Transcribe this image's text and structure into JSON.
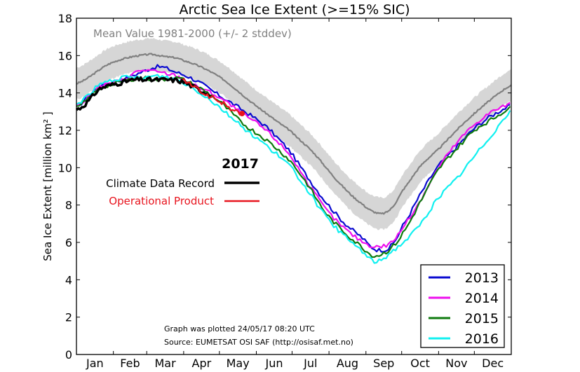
{
  "chart_data": {
    "type": "line",
    "title": "Arctic Sea Ice Extent (>=15% SIC)",
    "xlabel": "",
    "ylabel": "Sea Ice Extent [million km² ]",
    "ylim": [
      0,
      18
    ],
    "xlim_days": [
      1,
      366
    ],
    "yticks": [
      "0",
      "2",
      "4",
      "6",
      "8",
      "10",
      "12",
      "14",
      "16",
      "18"
    ],
    "month_labels": [
      "Jan",
      "Feb",
      "Mar",
      "Apr",
      "May",
      "Jun",
      "Jul",
      "Aug",
      "Sep",
      "Oct",
      "Nov",
      "Dec"
    ],
    "mean_label": "Mean Value 1981-2000 (+/- 2 stddev)",
    "annotation_lines": [
      "Graph was plotted 24/05/17 08:20 UTC",
      "Source: EUMETSAT OSI SAF (http://osisaf.met.no)"
    ],
    "legend_2017": {
      "title": "2017",
      "entries": [
        {
          "name": "Climate Data Record",
          "color": "#000000"
        },
        {
          "name": "Operational Product",
          "color": "#e8141e"
        }
      ]
    },
    "legend_position": "bottom-right",
    "mean": {
      "name": "Mean 1981-2000",
      "color": "#808080",
      "band_color": "#d6d6d6",
      "x": [
        1,
        30,
        60,
        75,
        90,
        120,
        150,
        180,
        200,
        220,
        240,
        255,
        265,
        275,
        290,
        305,
        320,
        335,
        350,
        366
      ],
      "values": [
        14.5,
        15.6,
        16.05,
        15.95,
        15.75,
        14.9,
        13.4,
        12.0,
        10.8,
        9.3,
        8.1,
        7.55,
        7.8,
        8.8,
        10.1,
        11.0,
        12.0,
        12.9,
        13.7,
        14.4
      ],
      "band": 0.85
    },
    "series": [
      {
        "name": "2013",
        "color": "#0a0ad0",
        "x": [
          1,
          20,
          40,
          55,
          70,
          85,
          100,
          120,
          140,
          160,
          180,
          195,
          210,
          225,
          240,
          250,
          258,
          265,
          275,
          290,
          305,
          320,
          335,
          350,
          366
        ],
        "values": [
          13.3,
          14.3,
          14.7,
          15.1,
          15.4,
          15.1,
          14.7,
          13.9,
          13.1,
          12.2,
          10.9,
          9.5,
          8.2,
          7.1,
          6.3,
          5.7,
          5.6,
          5.8,
          6.9,
          8.6,
          10.1,
          11.1,
          12.1,
          12.8,
          13.3
        ]
      },
      {
        "name": "2014",
        "color": "#ee10ee",
        "x": [
          1,
          20,
          40,
          55,
          70,
          85,
          100,
          120,
          140,
          160,
          180,
          195,
          210,
          225,
          240,
          250,
          258,
          265,
          275,
          290,
          305,
          320,
          335,
          350,
          366
        ],
        "values": [
          13.3,
          14.3,
          14.7,
          15.2,
          15.1,
          14.9,
          14.4,
          13.8,
          12.9,
          12.0,
          10.7,
          9.2,
          7.8,
          6.8,
          6.1,
          5.8,
          5.8,
          6.0,
          6.8,
          8.3,
          10.0,
          11.3,
          12.3,
          13.0,
          13.4
        ]
      },
      {
        "name": "2015",
        "color": "#0d7a0d",
        "x": [
          1,
          20,
          40,
          55,
          70,
          85,
          100,
          120,
          140,
          160,
          180,
          195,
          210,
          225,
          240,
          250,
          258,
          265,
          275,
          290,
          305,
          320,
          335,
          350,
          366
        ],
        "values": [
          13.2,
          14.2,
          14.6,
          14.8,
          14.7,
          14.8,
          14.4,
          13.6,
          12.4,
          11.5,
          10.4,
          9.1,
          7.6,
          6.6,
          5.8,
          5.3,
          5.4,
          5.7,
          6.5,
          8.2,
          9.9,
          11.0,
          12.0,
          12.6,
          13.2
        ]
      },
      {
        "name": "2016",
        "color": "#10f0f0",
        "x": [
          1,
          20,
          40,
          55,
          70,
          85,
          100,
          120,
          140,
          160,
          180,
          195,
          210,
          225,
          240,
          250,
          258,
          265,
          275,
          290,
          305,
          320,
          335,
          350,
          366
        ],
        "values": [
          13.4,
          14.4,
          14.8,
          14.8,
          14.9,
          14.7,
          14.2,
          13.3,
          12.2,
          11.2,
          10.1,
          8.8,
          7.4,
          6.4,
          5.6,
          5.0,
          5.1,
          5.5,
          6.0,
          7.0,
          8.4,
          9.4,
          10.6,
          11.8,
          13.0
        ]
      }
    ],
    "series_2017": [
      {
        "name": "Climate Data Record",
        "color": "#000000",
        "x": [
          1,
          10,
          20,
          35,
          50,
          65,
          80,
          90,
          100,
          110,
          115
        ],
        "values": [
          13.1,
          13.5,
          14.2,
          14.5,
          14.7,
          14.7,
          14.7,
          14.6,
          14.3,
          14.0,
          13.9
        ]
      },
      {
        "name": "Operational Product",
        "color": "#e8141e",
        "x": [
          90,
          100,
          110,
          120,
          130,
          135,
          140
        ],
        "values": [
          14.7,
          14.3,
          13.9,
          13.6,
          13.2,
          13.0,
          12.9
        ],
        "endpoint": {
          "x": 140,
          "value": 12.9
        }
      }
    ]
  }
}
